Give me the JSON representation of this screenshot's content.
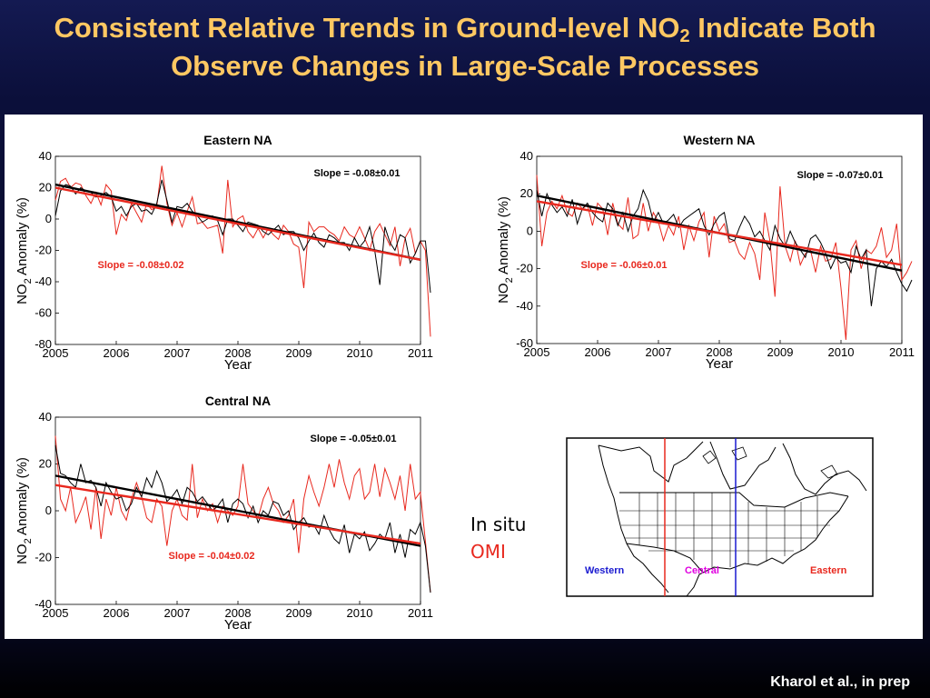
{
  "slide": {
    "title_part1": "Consistent Relative Trends in Ground-level NO",
    "title_sub": "2",
    "title_part2": " Indicate Both",
    "title_line2": "Observe Changes in Large-Scale Processes",
    "citation": "Kharol et al., in prep",
    "legend_insitu": "In situ",
    "legend_omi": "OMI",
    "colors": {
      "title": "#ffc862",
      "insitu": "#000000",
      "omi": "#e8281e"
    }
  },
  "map": {
    "labels": {
      "western": "Western",
      "central": "Central",
      "eastern": "Eastern"
    },
    "colors": {
      "western": "#1a1ad0",
      "central": "#e000e0",
      "eastern": "#e8281e",
      "west_line": "#e8281e",
      "east_line": "#1a1ad0"
    }
  },
  "chart_data": [
    {
      "type": "line",
      "title": "Eastern NA",
      "xlabel": "Year",
      "ylabel": "NO2 Anomaly (%)",
      "xlim": [
        2005,
        2011
      ],
      "ylim": [
        -80,
        40
      ],
      "xticks": [
        2005,
        2006,
        2007,
        2008,
        2009,
        2010,
        2011
      ],
      "yticks": [
        -80,
        -60,
        -40,
        -20,
        0,
        20,
        40
      ],
      "grid": false,
      "series": [
        {
          "name": "In situ",
          "color": "#000000",
          "start_x": 2005,
          "step": 0.0833,
          "values": [
            2,
            18,
            22,
            21,
            16,
            20,
            18,
            17,
            14,
            15,
            17,
            14,
            5,
            8,
            2,
            8,
            10,
            5,
            6,
            3,
            10,
            25,
            12,
            -2,
            8,
            7,
            10,
            5,
            2,
            -2,
            0,
            2,
            -1,
            -10,
            0,
            0,
            -4,
            -8,
            -2,
            -3,
            -4,
            -8,
            -10,
            -7,
            -4,
            -10,
            -8,
            -8,
            -12,
            -20,
            -14,
            -9,
            -15,
            -18,
            -10,
            -12,
            -15,
            -15,
            -20,
            -12,
            -18,
            -14,
            -5,
            -20,
            -42,
            -5,
            -15,
            -20,
            -10,
            -12,
            -28,
            -22,
            -14,
            -14,
            -47
          ],
          "trend": [
            22,
            -26
          ]
        },
        {
          "name": "OMI",
          "color": "#e8281e",
          "start_x": 2005,
          "step": 0.0833,
          "values": [
            12,
            24,
            26,
            20,
            23,
            22,
            15,
            10,
            17,
            9,
            22,
            18,
            -10,
            3,
            -1,
            10,
            4,
            -2,
            10,
            6,
            8,
            34,
            10,
            -4,
            4,
            -5,
            5,
            14,
            -3,
            -2,
            -6,
            -5,
            -4,
            -22,
            25,
            -5,
            0,
            2,
            -8,
            -12,
            -6,
            -12,
            -6,
            -10,
            -13,
            -4,
            -8,
            -16,
            -18,
            -44,
            -2,
            -8,
            -5,
            -5,
            -8,
            -10,
            -14,
            -5,
            -10,
            -12,
            -5,
            -12,
            -20,
            -8,
            -3,
            -10,
            -17,
            -5,
            -30,
            -12,
            -6,
            -22,
            -14,
            -20,
            -75
          ],
          "trend": [
            20,
            -26
          ]
        }
      ],
      "annotations": {
        "insitu_slope": "Slope = -0.08±0.01",
        "omi_slope": "Slope = -0.08±0.02"
      }
    },
    {
      "type": "line",
      "title": "Western NA",
      "xlabel": "Year",
      "ylabel": "NO2 Anomaly (%)",
      "xlim": [
        2005,
        2011
      ],
      "ylim": [
        -60,
        40
      ],
      "xticks": [
        2005,
        2006,
        2007,
        2008,
        2009,
        2010,
        2011
      ],
      "yticks": [
        -60,
        -40,
        -20,
        0,
        20,
        40
      ],
      "grid": false,
      "series": [
        {
          "name": "In situ",
          "color": "#000000",
          "start_x": 2005,
          "step": 0.0833,
          "values": [
            22,
            8,
            20,
            14,
            10,
            13,
            8,
            17,
            4,
            12,
            15,
            10,
            7,
            5,
            15,
            12,
            3,
            10,
            0,
            8,
            12,
            22,
            16,
            5,
            10,
            4,
            6,
            9,
            2,
            6,
            8,
            10,
            12,
            3,
            -2,
            4,
            8,
            10,
            -4,
            -5,
            2,
            8,
            4,
            -3,
            0,
            -5,
            -10,
            3,
            -4,
            -8,
            0,
            -6,
            -10,
            -14,
            -4,
            -2,
            -6,
            -12,
            -20,
            -14,
            -17,
            -16,
            -22,
            -8,
            -15,
            -10,
            -40,
            -20,
            -16,
            -19,
            -15,
            -22,
            -28,
            -32,
            -26
          ],
          "trend": [
            19,
            -21
          ]
        },
        {
          "name": "OMI",
          "color": "#e8281e",
          "start_x": 2005,
          "step": 0.0833,
          "values": [
            30,
            -8,
            10,
            16,
            12,
            19,
            10,
            8,
            15,
            12,
            14,
            3,
            15,
            12,
            -2,
            15,
            4,
            1,
            18,
            -4,
            -2,
            15,
            0,
            10,
            5,
            -5,
            3,
            -2,
            8,
            -10,
            3,
            -5,
            5,
            10,
            -14,
            8,
            0,
            4,
            -6,
            -5,
            -12,
            -15,
            -6,
            -12,
            -26,
            10,
            -5,
            -35,
            24,
            -8,
            -16,
            -5,
            -18,
            -12,
            -10,
            -22,
            -8,
            -16,
            -15,
            -6,
            -30,
            -58,
            -10,
            -5,
            -20,
            -10,
            -12,
            -8,
            2,
            -14,
            -10,
            4,
            -26,
            -22,
            -16
          ],
          "trend": [
            16,
            -18
          ]
        }
      ],
      "annotations": {
        "insitu_slope": "Slope = -0.07±0.01",
        "omi_slope": "Slope = -0.06±0.01"
      }
    },
    {
      "type": "line",
      "title": "Central NA",
      "xlabel": "Year",
      "ylabel": "NO2 Anomaly (%)",
      "xlim": [
        2005,
        2011
      ],
      "ylim": [
        -40,
        40
      ],
      "xticks": [
        2005,
        2006,
        2007,
        2008,
        2009,
        2010,
        2011
      ],
      "yticks": [
        -40,
        -20,
        0,
        20,
        40
      ],
      "grid": false,
      "series": [
        {
          "name": "In situ",
          "color": "#000000",
          "start_x": 2005,
          "step": 0.0833,
          "values": [
            28,
            16,
            15,
            12,
            10,
            20,
            12,
            13,
            10,
            2,
            12,
            8,
            5,
            6,
            0,
            3,
            10,
            6,
            14,
            10,
            17,
            12,
            4,
            6,
            9,
            3,
            10,
            8,
            4,
            6,
            3,
            0,
            2,
            5,
            -5,
            3,
            5,
            3,
            -3,
            2,
            -5,
            0,
            -2,
            4,
            3,
            -2,
            0,
            -8,
            -5,
            -3,
            -7,
            -6,
            -10,
            -2,
            -8,
            -12,
            -14,
            -6,
            -18,
            -10,
            -12,
            -9,
            -17,
            -14,
            -10,
            -12,
            -5,
            -18,
            -10,
            -20,
            -8,
            -10,
            -5,
            -15,
            -35
          ],
          "trend": [
            15,
            -15
          ]
        },
        {
          "name": "OMI",
          "color": "#e8281e",
          "start_x": 2005,
          "step": 0.0833,
          "values": [
            32,
            5,
            0,
            10,
            -5,
            0,
            6,
            -8,
            10,
            -12,
            5,
            -2,
            10,
            0,
            -4,
            5,
            12,
            6,
            -3,
            -5,
            5,
            2,
            -15,
            0,
            5,
            -2,
            -4,
            20,
            -3,
            5,
            0,
            3,
            -5,
            2,
            0,
            -2,
            2,
            20,
            3,
            0,
            -3,
            5,
            10,
            3,
            0,
            -5,
            -2,
            5,
            -18,
            5,
            15,
            8,
            2,
            10,
            20,
            10,
            22,
            12,
            5,
            15,
            18,
            5,
            8,
            20,
            6,
            18,
            12,
            5,
            15,
            0,
            20,
            5,
            8,
            -13,
            -35
          ],
          "trend": [
            11,
            -14
          ]
        }
      ],
      "annotations": {
        "insitu_slope": "Slope = -0.05±0.01",
        "omi_slope": "Slope = -0.04±0.02"
      }
    }
  ]
}
